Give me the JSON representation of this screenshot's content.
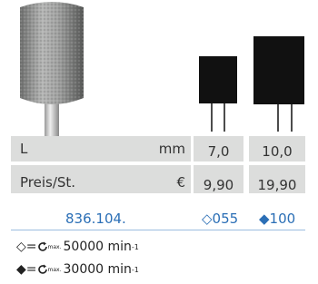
{
  "table": {
    "rows": [
      [
        "L",
        "mm",
        "7,0",
        "10,0"
      ],
      [
        "Preis/St.",
        "€",
        "9,90",
        "19,90"
      ]
    ]
  },
  "order": {
    "number": "836.104.",
    "options": [
      {
        "symbol": "◇",
        "code": "055"
      },
      {
        "symbol": "◆",
        "code": "100"
      }
    ]
  },
  "footnotes": [
    {
      "symbol": "◇",
      "equals": "=",
      "sub": "max.",
      "speed": "50000 min",
      "sup": "-1"
    },
    {
      "symbol": "◆",
      "equals": "=",
      "sub": "max.",
      "speed": "30000 min",
      "sup": "-1"
    }
  ]
}
